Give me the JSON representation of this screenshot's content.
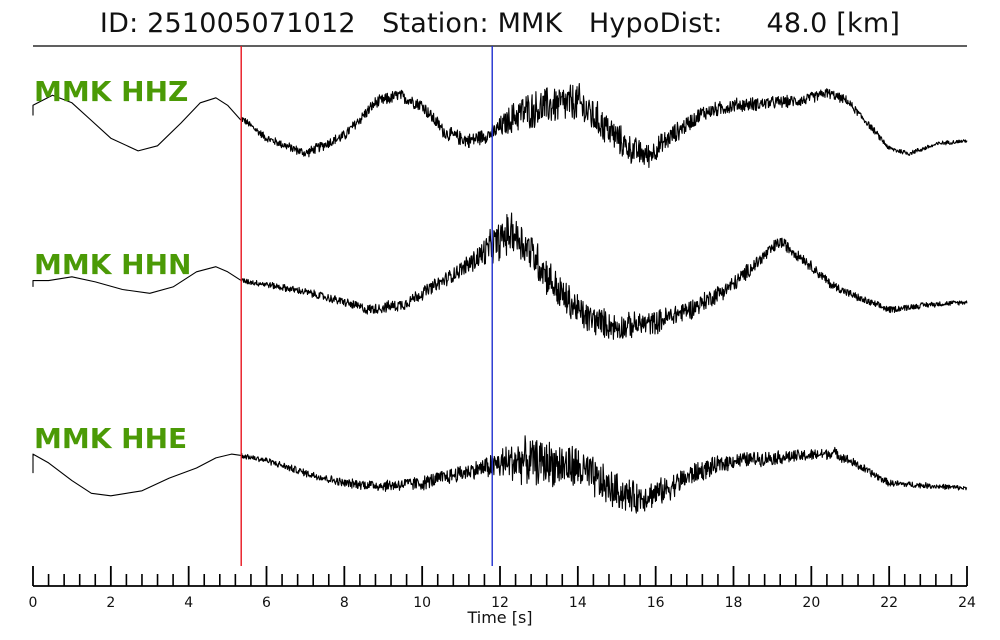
{
  "title": {
    "id_label": "ID:",
    "id_value": "251005071012",
    "station_label": "Station:",
    "station_value": "MMK",
    "dist_label": "HypoDist:",
    "dist_value": "48.0",
    "dist_unit": "[km]"
  },
  "colors": {
    "trace": "#000000",
    "label": "#4b9a06",
    "p_pick": "#e8141e",
    "s_pick": "#1f2fcf",
    "axis": "#000000"
  },
  "chart_data": {
    "type": "line",
    "xlabel": "Time [s]",
    "xlim": [
      0,
      24
    ],
    "major_ticks": [
      0,
      2,
      4,
      6,
      8,
      10,
      12,
      14,
      16,
      18,
      20,
      22,
      24
    ],
    "minor_tick_step": 0.4,
    "picks": [
      {
        "phase": "P",
        "time": 5.35,
        "color": "#e8141e"
      },
      {
        "phase": "S",
        "time": 11.8,
        "color": "#1f2fcf"
      }
    ],
    "series": [
      {
        "name": "MMK HHZ",
        "pre_event": [
          [
            0,
            0.1
          ],
          [
            0.0,
            0.5
          ],
          [
            0.5,
            0.9
          ],
          [
            1.0,
            0.6
          ],
          [
            1.5,
            -0.1
          ],
          [
            2.0,
            -0.8
          ],
          [
            2.7,
            -1.3
          ],
          [
            3.2,
            -1.1
          ],
          [
            3.8,
            -0.2
          ],
          [
            4.3,
            0.6
          ],
          [
            4.7,
            0.8
          ],
          [
            5.0,
            0.5
          ],
          [
            5.35,
            -0.1
          ]
        ],
        "envelope": [
          [
            5.35,
            0.0
          ],
          [
            6.0,
            -0.8
          ],
          [
            7.0,
            -1.4
          ],
          [
            8.0,
            -0.7
          ],
          [
            8.8,
            0.6
          ],
          [
            9.4,
            0.9
          ],
          [
            10.0,
            0.5
          ],
          [
            10.6,
            -0.6
          ],
          [
            11.2,
            -0.9
          ],
          [
            11.8,
            -0.6
          ],
          [
            12.5,
            0.2
          ],
          [
            13.3,
            0.5
          ],
          [
            14.0,
            0.6
          ],
          [
            14.6,
            -0.2
          ],
          [
            15.3,
            -1.2
          ],
          [
            15.8,
            -1.5
          ],
          [
            16.5,
            -0.6
          ],
          [
            17.2,
            0.2
          ],
          [
            18.0,
            0.5
          ],
          [
            19.0,
            0.6
          ],
          [
            19.8,
            0.7
          ],
          [
            20.4,
            1.0
          ],
          [
            20.9,
            0.7
          ],
          [
            21.5,
            -0.3
          ],
          [
            22.0,
            -1.2
          ],
          [
            22.5,
            -1.4
          ],
          [
            23.3,
            -1.0
          ],
          [
            24.0,
            -0.9
          ]
        ],
        "noise": [
          [
            5.35,
            0.15
          ],
          [
            8.0,
            0.25
          ],
          [
            11.8,
            0.35
          ],
          [
            12.5,
            0.8
          ],
          [
            14.0,
            0.9
          ],
          [
            15.5,
            0.6
          ],
          [
            17.0,
            0.35
          ],
          [
            20.0,
            0.25
          ],
          [
            22.0,
            0.12
          ],
          [
            24.0,
            0.08
          ]
        ]
      },
      {
        "name": "MMK HHN",
        "pre_event": [
          [
            0,
            0.2
          ],
          [
            0.0,
            0.45
          ],
          [
            0.4,
            0.45
          ],
          [
            1.0,
            0.6
          ],
          [
            1.6,
            0.4
          ],
          [
            2.3,
            0.1
          ],
          [
            3.0,
            -0.05
          ],
          [
            3.6,
            0.2
          ],
          [
            4.2,
            0.8
          ],
          [
            4.7,
            1.0
          ],
          [
            5.0,
            0.8
          ],
          [
            5.35,
            0.45
          ]
        ],
        "envelope": [
          [
            5.35,
            0.45
          ],
          [
            6.0,
            0.3
          ],
          [
            7.0,
            0.0
          ],
          [
            8.0,
            -0.4
          ],
          [
            8.6,
            -0.7
          ],
          [
            9.5,
            -0.5
          ],
          [
            10.5,
            0.4
          ],
          [
            11.3,
            1.2
          ],
          [
            11.8,
            1.8
          ],
          [
            12.3,
            2.4
          ],
          [
            12.8,
            1.6
          ],
          [
            13.5,
            0.0
          ],
          [
            14.2,
            -1.0
          ],
          [
            15.0,
            -1.4
          ],
          [
            16.0,
            -1.2
          ],
          [
            17.0,
            -0.6
          ],
          [
            18.0,
            0.3
          ],
          [
            18.7,
            1.3
          ],
          [
            19.2,
            2.0
          ],
          [
            19.8,
            1.3
          ],
          [
            20.5,
            0.3
          ],
          [
            21.3,
            -0.3
          ],
          [
            22.0,
            -0.7
          ],
          [
            23.0,
            -0.5
          ],
          [
            24.0,
            -0.4
          ]
        ],
        "noise": [
          [
            5.35,
            0.12
          ],
          [
            8.0,
            0.2
          ],
          [
            11.0,
            0.35
          ],
          [
            12.0,
            0.9
          ],
          [
            13.0,
            0.9
          ],
          [
            15.0,
            0.6
          ],
          [
            17.5,
            0.4
          ],
          [
            19.0,
            0.3
          ],
          [
            21.0,
            0.18
          ],
          [
            24.0,
            0.1
          ]
        ]
      },
      {
        "name": "MMK HHE",
        "pre_event": [
          [
            0,
            -0.2
          ],
          [
            0.0,
            0.55
          ],
          [
            0.4,
            0.2
          ],
          [
            1.0,
            -0.5
          ],
          [
            1.5,
            -1.0
          ],
          [
            2.0,
            -1.1
          ],
          [
            2.8,
            -0.9
          ],
          [
            3.5,
            -0.4
          ],
          [
            4.2,
            0.0
          ],
          [
            4.7,
            0.4
          ],
          [
            5.1,
            0.55
          ],
          [
            5.35,
            0.5
          ]
        ],
        "envelope": [
          [
            5.35,
            0.5
          ],
          [
            6.0,
            0.3
          ],
          [
            7.0,
            -0.2
          ],
          [
            8.0,
            -0.6
          ],
          [
            9.0,
            -0.7
          ],
          [
            10.0,
            -0.6
          ],
          [
            11.0,
            -0.2
          ],
          [
            11.8,
            0.1
          ],
          [
            12.5,
            0.3
          ],
          [
            13.3,
            0.2
          ],
          [
            14.0,
            0.0
          ],
          [
            14.8,
            -0.8
          ],
          [
            15.5,
            -1.2
          ],
          [
            16.2,
            -0.9
          ],
          [
            17.0,
            -0.2
          ],
          [
            18.0,
            0.3
          ],
          [
            19.0,
            0.4
          ],
          [
            20.0,
            0.5
          ],
          [
            20.6,
            0.6
          ],
          [
            21.2,
            0.1
          ],
          [
            22.0,
            -0.6
          ],
          [
            23.0,
            -0.7
          ],
          [
            24.0,
            -0.8
          ]
        ],
        "noise": [
          [
            5.35,
            0.12
          ],
          [
            8.0,
            0.2
          ],
          [
            11.5,
            0.4
          ],
          [
            12.5,
            1.0
          ],
          [
            14.0,
            1.0
          ],
          [
            16.0,
            0.6
          ],
          [
            18.0,
            0.35
          ],
          [
            20.5,
            0.25
          ],
          [
            22.0,
            0.15
          ],
          [
            24.0,
            0.1
          ]
        ]
      }
    ]
  }
}
